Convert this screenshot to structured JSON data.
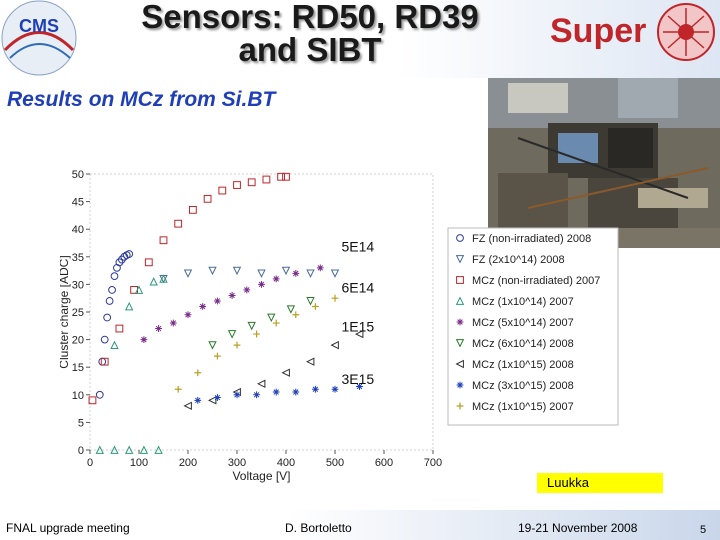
{
  "slide": {
    "title_line1": "Sensors: RD50, RD39",
    "title_line2": "and SIBT",
    "subtitle": "Results on MCz from Si.BT",
    "credit": "Luukka",
    "footer_left": "FNAL upgrade meeting",
    "footer_center": "D. Bortoletto",
    "footer_date": "19-21 November 2008",
    "page_number": "5",
    "logo_left": "CMS",
    "logo_right": "Super"
  },
  "chart_data": {
    "type": "scatter",
    "xlabel": "Voltage [V]",
    "ylabel": "Cluster charge [ADC]",
    "xlim": [
      0,
      700
    ],
    "ylim": [
      0,
      50
    ],
    "xticks": [
      "0",
      "100",
      "200",
      "300",
      "400",
      "500",
      "600",
      "700"
    ],
    "yticks": [
      "0",
      "5",
      "10",
      "15",
      "20",
      "25",
      "30",
      "35",
      "40",
      "45",
      "50"
    ],
    "annotations": [
      {
        "text": "5E14",
        "x": 580,
        "y": 36
      },
      {
        "text": "6E14",
        "x": 580,
        "y": 28.5
      },
      {
        "text": "1E15",
        "x": 580,
        "y": 21.5
      },
      {
        "text": "3E15",
        "x": 580,
        "y": 12
      }
    ],
    "series": [
      {
        "name": "FZ (non-irradiated) 2008",
        "marker": "circle",
        "color": "#2e3a9e",
        "x": [
          20,
          25,
          30,
          35,
          40,
          45,
          50,
          55,
          60,
          65,
          70,
          75,
          80
        ],
        "y": [
          10,
          16,
          20,
          24,
          27,
          29,
          31.5,
          33,
          34,
          34.5,
          35,
          35.3,
          35.5
        ]
      },
      {
        "name": "FZ (2x10^14) 2008",
        "marker": "triangle-down",
        "color": "#4a6b9a",
        "x": [
          150,
          200,
          250,
          300,
          350,
          400,
          450,
          500
        ],
        "y": [
          31,
          32,
          32.5,
          32.5,
          32,
          32.5,
          32,
          32
        ]
      },
      {
        "name": "MCz (non-irradiated) 2007",
        "marker": "square",
        "color": "#c0252a",
        "x": [
          5,
          30,
          60,
          90,
          120,
          150,
          180,
          210,
          240,
          270,
          300,
          330,
          360,
          390,
          400
        ],
        "y": [
          9,
          16,
          22,
          29,
          34,
          38,
          41,
          43.5,
          45.5,
          47,
          48,
          48.5,
          49,
          49.5,
          49.5
        ]
      },
      {
        "name": "MCz (1x10^14) 2007",
        "marker": "triangle-up",
        "color": "#2a9a7a",
        "x": [
          50,
          80,
          100,
          130,
          150
        ],
        "y": [
          19,
          26,
          29,
          30.5,
          31
        ]
      },
      {
        "name": "MCz (5x10^14) 2007",
        "marker": "star",
        "color": "#7a2a8a",
        "x": [
          110,
          140,
          170,
          200,
          230,
          260,
          290,
          320,
          350,
          380,
          420,
          470
        ],
        "y": [
          20,
          22,
          23,
          24.5,
          26,
          27,
          28,
          29,
          30,
          31,
          32,
          33
        ]
      },
      {
        "name": "MCz (6x10^14) 2008",
        "marker": "triangle-down",
        "color": "#2a7a2a",
        "x": [
          250,
          290,
          330,
          370,
          410,
          450
        ],
        "y": [
          19,
          21,
          22.5,
          24,
          25.5,
          27
        ]
      },
      {
        "name": "MCz (1x10^15) 2008",
        "marker": "triangle-left",
        "color": "#333333",
        "x": [
          200,
          250,
          300,
          350,
          400,
          450,
          500,
          550
        ],
        "y": [
          8,
          9,
          10.5,
          12,
          14,
          16,
          19,
          21
        ]
      },
      {
        "name": "MCz (3x10^15) 2008",
        "marker": "star",
        "color": "#1f3fb8",
        "x": [
          220,
          260,
          300,
          340,
          380,
          420,
          460,
          500,
          550
        ],
        "y": [
          9,
          9.5,
          10,
          10,
          10.5,
          10.5,
          11,
          11,
          11.5
        ]
      },
      {
        "name": "MCz (1x10^15) 2007",
        "marker": "plus",
        "color": "#b8a020",
        "x": [
          180,
          220,
          260,
          300,
          340,
          380,
          420,
          460,
          500
        ],
        "y": [
          11,
          14,
          17,
          19,
          21,
          23,
          24.5,
          26,
          27.5
        ]
      },
      {
        "name": "",
        "marker": "triangle-up",
        "color": "#2a9a7a",
        "x": [
          20,
          50,
          80,
          110,
          140
        ],
        "y": [
          0,
          0,
          0,
          0,
          0
        ]
      }
    ],
    "legend_placement": "right"
  }
}
